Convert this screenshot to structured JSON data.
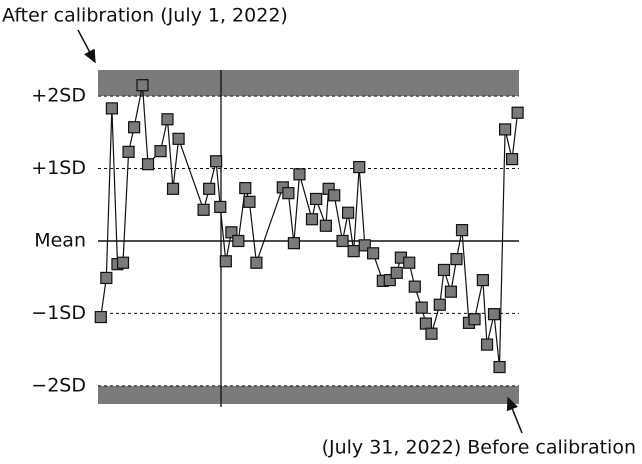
{
  "chart_data": {
    "type": "line",
    "annotations": [
      "After calibration (July 1, 2022)",
      "(July 31, 2022) Before calibration"
    ],
    "x": [
      1.0,
      1.4,
      1.8,
      2.2,
      2.6,
      3.0,
      3.4,
      4.0,
      4.4,
      5.3,
      5.8,
      6.2,
      6.6,
      8.4,
      8.8,
      9.3,
      9.6,
      10.0,
      10.4,
      10.9,
      11.4,
      11.7,
      12.2,
      14.1,
      14.5,
      14.9,
      15.3,
      16.2,
      16.5,
      17.2,
      17.4,
      17.8,
      18.4,
      18.8,
      19.2,
      19.6,
      20.0,
      20.6,
      21.3,
      21.8,
      22.3,
      22.6,
      23.2,
      23.6,
      24.1,
      24.4,
      24.8,
      25.4,
      25.7,
      26.2,
      26.6,
      27.0,
      27.5,
      27.9,
      28.5,
      28.8,
      29.3,
      29.7,
      30.1,
      30.6,
      31.0
    ],
    "values": [
      -1.05,
      -0.51,
      1.83,
      -0.32,
      -0.3,
      1.23,
      1.57,
      2.15,
      1.06,
      1.24,
      1.68,
      0.72,
      1.41,
      0.43,
      0.72,
      1.1,
      0.47,
      -0.28,
      0.12,
      0.0,
      0.73,
      0.54,
      -0.3,
      0.74,
      0.66,
      -0.03,
      0.92,
      0.3,
      0.58,
      0.21,
      0.72,
      0.63,
      0.0,
      0.39,
      -0.14,
      1.02,
      -0.06,
      -0.17,
      -0.55,
      -0.54,
      -0.44,
      -0.23,
      -0.3,
      -0.63,
      -0.92,
      -1.14,
      -1.28,
      -0.88,
      -0.4,
      -0.7,
      -0.25,
      0.15,
      -1.13,
      -1.08,
      -0.54,
      -1.43,
      -1.01,
      -1.74,
      1.54,
      1.13,
      1.77
    ],
    "color": "#7a7a7a",
    "xlim": [
      0.8,
      31.1
    ],
    "ylim": [
      -2.25,
      2.36
    ],
    "yticks": [
      {
        "value": 2,
        "label": "+2SD"
      },
      {
        "value": 1,
        "label": "+1SD"
      },
      {
        "value": 0,
        "label": "Mean"
      },
      {
        "value": -1,
        "label": "−1SD"
      },
      {
        "value": -2,
        "label": "−2SD"
      }
    ],
    "grid": true
  }
}
